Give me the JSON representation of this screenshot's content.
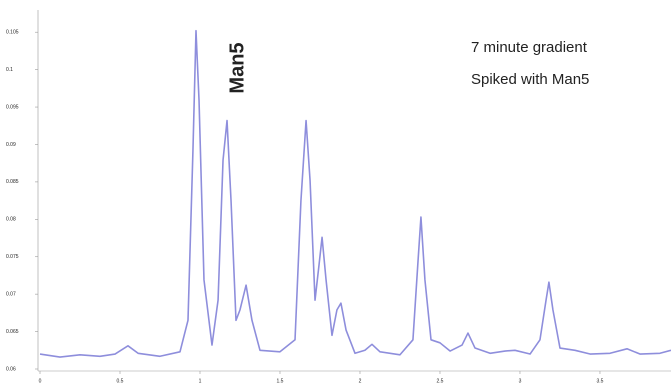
{
  "chart_data": {
    "type": "line",
    "annotations": [
      "Man5",
      "7 minute gradient",
      "Spiked with Man5"
    ],
    "x": [
      0,
      0.125,
      0.25,
      0.375,
      0.469,
      0.55,
      0.613,
      0.75,
      0.875,
      0.925,
      0.956,
      0.975,
      0.994,
      1.025,
      1.075,
      1.113,
      1.144,
      1.169,
      1.194,
      1.225,
      1.25,
      1.288,
      1.325,
      1.375,
      1.5,
      1.594,
      1.631,
      1.663,
      1.688,
      1.719,
      1.744,
      1.763,
      1.788,
      1.825,
      1.856,
      1.881,
      1.913,
      1.969,
      2.031,
      2.075,
      2.125,
      2.25,
      2.331,
      2.363,
      2.381,
      2.406,
      2.444,
      2.5,
      2.563,
      2.638,
      2.675,
      2.719,
      2.813,
      2.906,
      2.969,
      3.063,
      3.125,
      3.163,
      3.181,
      3.206,
      3.25,
      3.344,
      3.438,
      3.563,
      3.669,
      3.75,
      3.875,
      3.944
    ],
    "series": [
      {
        "color": "#8e8edc",
        "values": [
          0.062,
          0.0616,
          0.0619,
          0.0617,
          0.062,
          0.0631,
          0.0621,
          0.0617,
          0.0623,
          0.0665,
          0.0892,
          0.1052,
          0.0959,
          0.0719,
          0.0632,
          0.0692,
          0.0879,
          0.0932,
          0.0825,
          0.0665,
          0.0679,
          0.0712,
          0.0665,
          0.0625,
          0.0623,
          0.0639,
          0.0825,
          0.0932,
          0.0852,
          0.0692,
          0.0739,
          0.0776,
          0.0719,
          0.0645,
          0.0679,
          0.0688,
          0.0652,
          0.0621,
          0.0625,
          0.0633,
          0.0623,
          0.0619,
          0.0639,
          0.0745,
          0.0803,
          0.0719,
          0.0639,
          0.0635,
          0.0624,
          0.0632,
          0.0648,
          0.0628,
          0.0621,
          0.0624,
          0.0625,
          0.062,
          0.0639,
          0.0692,
          0.0716,
          0.0679,
          0.0628,
          0.0625,
          0.062,
          0.0621,
          0.0627,
          0.062,
          0.0621,
          0.0625
        ]
      }
    ],
    "xlim": [
      0,
      3.944
    ],
    "xticks": [
      0,
      0.5,
      1,
      1.5,
      2,
      2.5,
      3,
      3.5
    ],
    "ylim": [
      0.06,
      0.1075
    ],
    "yticks": [
      0.06,
      0.065,
      0.07,
      0.075,
      0.08,
      0.085,
      0.09,
      0.095,
      0.1,
      0.105
    ]
  }
}
